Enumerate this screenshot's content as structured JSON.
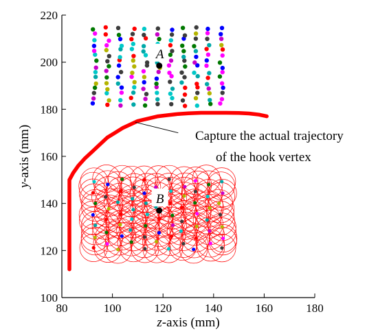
{
  "chart_data": {
    "type": "scatter",
    "xlabel_var": "z",
    "xlabel_rest": "-axis (mm)",
    "ylabel_var": "y",
    "ylabel_rest": "-axis (mm)",
    "xlim": [
      80,
      180
    ],
    "ylim": [
      100,
      220
    ],
    "xticks": [
      80,
      100,
      120,
      140,
      160,
      180
    ],
    "yticks": [
      100,
      120,
      140,
      160,
      180,
      200,
      220
    ],
    "grid": false,
    "point_colors": [
      "#00a8a8",
      "#ff0000",
      "#0000ff",
      "#b4b400",
      "#c800c8",
      "#007800",
      "#3c3c3c",
      "#ff00ff",
      "#00c8c8"
    ],
    "region_A": {
      "label": "A",
      "center": [
        118.5,
        198.5
      ],
      "z_columns": [
        93,
        98,
        103,
        108,
        113,
        118,
        123,
        128,
        133,
        138,
        143
      ],
      "y_range": [
        182,
        216
      ]
    },
    "region_B": {
      "label": "B",
      "center": [
        118.5,
        137
      ],
      "z_columns": [
        93,
        98,
        103,
        108,
        113,
        118,
        123,
        128,
        133,
        138,
        143
      ],
      "y_range": [
        121,
        150
      ],
      "circle_radius_mm": 5.5,
      "circle_color": "#ff0000"
    },
    "trajectory": {
      "color": "#ff0000",
      "points": [
        [
          83,
          112
        ],
        [
          83,
          120
        ],
        [
          83,
          130
        ],
        [
          83,
          140
        ],
        [
          83,
          150
        ],
        [
          84.5,
          153
        ],
        [
          86.5,
          156
        ],
        [
          89,
          159
        ],
        [
          92,
          162
        ],
        [
          95,
          165
        ],
        [
          98,
          168
        ],
        [
          101,
          170
        ],
        [
          104,
          172
        ],
        [
          107,
          173.5
        ],
        [
          110,
          175
        ],
        [
          114,
          176
        ],
        [
          118,
          177
        ],
        [
          122,
          177.5
        ],
        [
          126,
          178
        ],
        [
          130,
          178.3
        ],
        [
          135,
          178.5
        ],
        [
          140,
          178.5
        ],
        [
          145,
          178.5
        ],
        [
          150,
          178.4
        ],
        [
          154,
          178.2
        ],
        [
          158,
          177.7
        ],
        [
          161,
          177
        ]
      ]
    },
    "annotation": {
      "line1": "Capture the actual trajectory",
      "line2": "of the hook vertex",
      "pointer_from": [
        126,
        170
      ],
      "pointer_to": [
        109,
        174.5
      ]
    }
  }
}
